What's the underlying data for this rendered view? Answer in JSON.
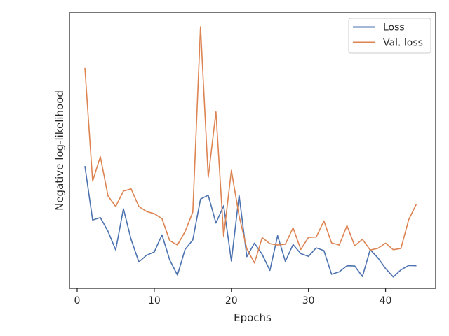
{
  "chart_data": {
    "type": "line",
    "xlabel": "Epochs",
    "ylabel": "Negative log-likelihood",
    "xlim": [
      -1,
      46.5
    ],
    "ylim": [
      0,
      1
    ],
    "x_ticks": [
      0,
      10,
      20,
      30,
      40
    ],
    "y_ticks_shown": false,
    "y_scale_note": "y values are relative (0 = axis bottom, 1 = axis top); no y tick labels are printed",
    "grid": false,
    "legend_position": "upper right",
    "x": [
      1,
      2,
      3,
      4,
      5,
      6,
      7,
      8,
      9,
      10,
      11,
      12,
      13,
      14,
      15,
      16,
      17,
      18,
      19,
      20,
      21,
      22,
      23,
      24,
      25,
      26,
      27,
      28,
      29,
      30,
      31,
      32,
      33,
      34,
      35,
      36,
      37,
      38,
      39,
      40,
      41,
      42,
      43,
      44
    ],
    "series": [
      {
        "name": "Loss",
        "color": "#4c72b0",
        "values": [
          0.444,
          0.248,
          0.257,
          0.207,
          0.139,
          0.289,
          0.177,
          0.096,
          0.12,
          0.132,
          0.194,
          0.103,
          0.048,
          0.141,
          0.176,
          0.324,
          0.338,
          0.237,
          0.3,
          0.099,
          0.338,
          0.115,
          0.164,
          0.123,
          0.065,
          0.191,
          0.098,
          0.159,
          0.126,
          0.116,
          0.147,
          0.137,
          0.051,
          0.06,
          0.082,
          0.081,
          0.043,
          0.14,
          0.111,
          0.072,
          0.041,
          0.067,
          0.083,
          0.082
        ]
      },
      {
        "name": "Val. loss",
        "color": "#dd8452",
        "values": [
          0.8,
          0.389,
          0.478,
          0.336,
          0.297,
          0.353,
          0.361,
          0.297,
          0.279,
          0.271,
          0.253,
          0.173,
          0.157,
          0.206,
          0.277,
          0.949,
          0.403,
          0.64,
          0.189,
          0.428,
          0.263,
          0.144,
          0.092,
          0.184,
          0.162,
          0.157,
          0.16,
          0.22,
          0.141,
          0.185,
          0.186,
          0.245,
          0.165,
          0.157,
          0.228,
          0.154,
          0.178,
          0.139,
          0.145,
          0.164,
          0.14,
          0.145,
          0.249,
          0.306
        ]
      }
    ]
  }
}
